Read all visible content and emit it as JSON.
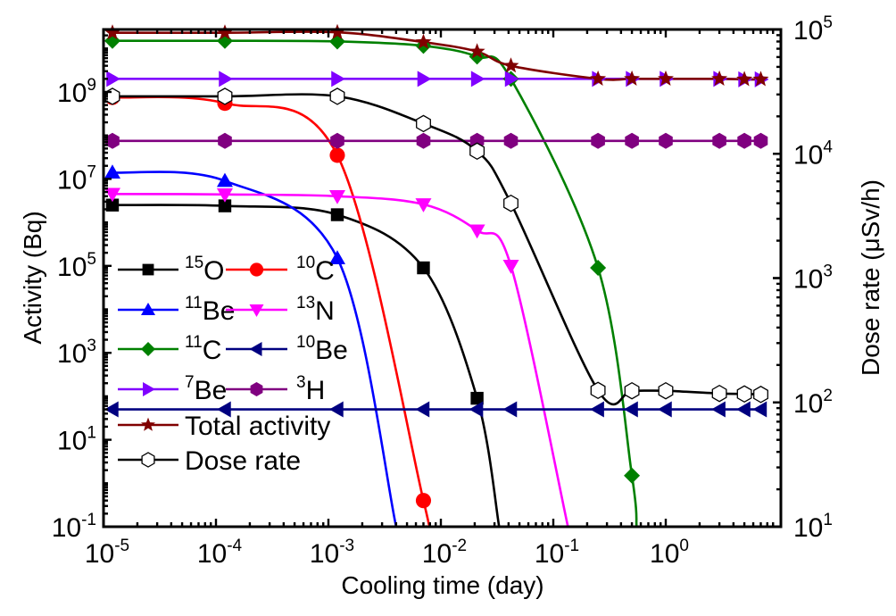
{
  "chart_data": {
    "type": "line",
    "title": "",
    "xlabel": "Cooling time (day)",
    "ylabel": "Activity (Bq)",
    "y2label": "Dose rate (μSv/h)",
    "xscale": "log",
    "yscale": "log",
    "y2scale": "log",
    "xlim": [
      1e-05,
      8
    ],
    "ylim": [
      0.1,
      28000000000.0
    ],
    "y2lim": [
      10,
      100000
    ],
    "xticks": [
      {
        "base": "10",
        "exp": "-5",
        "value": 1e-05
      },
      {
        "base": "10",
        "exp": "-4",
        "value": 0.0001
      },
      {
        "base": "10",
        "exp": "-3",
        "value": 0.001
      },
      {
        "base": "10",
        "exp": "-2",
        "value": 0.01
      },
      {
        "base": "10",
        "exp": "-1",
        "value": 0.1
      },
      {
        "base": "10",
        "exp": "0",
        "value": 1
      }
    ],
    "yticks": [
      {
        "base": "10",
        "exp": "-1",
        "value": 0.1
      },
      {
        "base": "10",
        "exp": "1",
        "value": 10
      },
      {
        "base": "10",
        "exp": "3",
        "value": 1000
      },
      {
        "base": "10",
        "exp": "5",
        "value": 100000
      },
      {
        "base": "10",
        "exp": "7",
        "value": 10000000
      },
      {
        "base": "10",
        "exp": "9",
        "value": 1000000000
      }
    ],
    "y2ticks": [
      {
        "base": "10",
        "exp": "1",
        "value": 10
      },
      {
        "base": "10",
        "exp": "2",
        "value": 100
      },
      {
        "base": "10",
        "exp": "3",
        "value": 1000
      },
      {
        "base": "10",
        "exp": "4",
        "value": 10000
      },
      {
        "base": "10",
        "exp": "5",
        "value": 100000
      }
    ],
    "grid": false,
    "legend_position": "center-left",
    "series": [
      {
        "name": "15O",
        "sup": "15",
        "label": "O",
        "color": "#000000",
        "marker": "square",
        "axis": "left",
        "x": [
          1.2e-05,
          0.00012,
          0.0012,
          0.007,
          0.021,
          0.033
        ],
        "y": [
          2500000.0,
          2400000.0,
          1500000.0,
          90000.0,
          90,
          0.1
        ]
      },
      {
        "name": "10C",
        "sup": "10",
        "label": "C",
        "color": "#ff0000",
        "marker": "circle",
        "axis": "left",
        "x": [
          1.2e-05,
          0.00012,
          0.0012,
          0.007,
          0.0074
        ],
        "y": [
          750000000.0,
          550000000.0,
          35000000.0,
          0.4,
          0.1
        ]
      },
      {
        "name": "11Be",
        "sup": "11",
        "label": "Be",
        "color": "#0000ff",
        "marker": "triangle-up",
        "axis": "left",
        "x": [
          1.2e-05,
          0.00012,
          0.0012,
          0.004
        ],
        "y": [
          14000000.0,
          9000000.0,
          150000.0,
          0.1
        ]
      },
      {
        "name": "13N",
        "sup": "13",
        "label": "N",
        "color": "#ff00ff",
        "marker": "triangle-down",
        "axis": "left",
        "x": [
          1.2e-05,
          0.00012,
          0.0012,
          0.007,
          0.021,
          0.042,
          0.135
        ],
        "y": [
          4500000.0,
          4400000.0,
          4000000.0,
          2600000.0,
          650000.0,
          100000.0,
          0.1
        ]
      },
      {
        "name": "11C",
        "sup": "11",
        "label": "C",
        "color": "#008000",
        "marker": "diamond",
        "axis": "left",
        "x": [
          1.2e-05,
          0.00012,
          0.0012,
          0.007,
          0.021,
          0.042,
          0.25,
          0.5,
          0.55
        ],
        "y": [
          15000000000.0,
          15000000000.0,
          14500000000.0,
          11500000000.0,
          6500000000.0,
          2000000000.0,
          90000.0,
          1.5,
          0.1
        ]
      },
      {
        "name": "10Be",
        "sup": "10",
        "label": "Be",
        "color": "#000080",
        "marker": "triangle-left",
        "axis": "left",
        "x": [
          1.2e-05,
          0.00012,
          0.0012,
          0.007,
          0.021,
          0.042,
          0.25,
          0.5,
          1,
          3,
          5,
          7
        ],
        "y": [
          50,
          50,
          50,
          50,
          50,
          50,
          50,
          50,
          50,
          50,
          50,
          50
        ]
      },
      {
        "name": "7Be",
        "sup": "7",
        "label": "Be",
        "color": "#8000ff",
        "marker": "triangle-right",
        "axis": "left",
        "x": [
          1.2e-05,
          0.00012,
          0.0012,
          0.007,
          0.021,
          0.042,
          0.25,
          0.5,
          1,
          3,
          5,
          7
        ],
        "y": [
          2000000000.0,
          2000000000.0,
          2000000000.0,
          2000000000.0,
          2000000000.0,
          2000000000.0,
          2000000000.0,
          2000000000.0,
          2000000000.0,
          2000000000.0,
          1950000000.0,
          1950000000.0
        ]
      },
      {
        "name": "3H",
        "sup": "3",
        "label": "H",
        "color": "#800080",
        "marker": "hexagon",
        "axis": "left",
        "x": [
          1.2e-05,
          0.00012,
          0.0012,
          0.007,
          0.021,
          0.042,
          0.25,
          0.5,
          1,
          3,
          5,
          7
        ],
        "y": [
          75000000.0,
          75000000.0,
          75000000.0,
          75000000.0,
          75000000.0,
          75000000.0,
          75000000.0,
          75000000.0,
          75000000.0,
          75000000.0,
          75000000.0,
          75000000.0
        ]
      },
      {
        "name": "Total activity",
        "sup": "",
        "label": "Total activity",
        "color": "#800000",
        "marker": "star",
        "axis": "left",
        "x": [
          1.2e-05,
          0.00012,
          0.0012,
          0.007,
          0.021,
          0.042,
          0.25,
          0.5,
          1,
          3,
          5,
          7
        ],
        "y": [
          23000000000.0,
          23000000000.0,
          23500000000.0,
          14000000000.0,
          8500000000.0,
          4000000000.0,
          2000000000.0,
          2000000000.0,
          2000000000.0,
          2000000000.0,
          1950000000.0,
          1950000000.0
        ]
      },
      {
        "name": "Dose rate",
        "sup": "",
        "label": "Dose rate",
        "color": "#000000",
        "marker": "hexagon-open",
        "axis": "right",
        "x": [
          1.2e-05,
          0.00012,
          0.0012,
          0.007,
          0.021,
          0.042,
          0.25,
          0.5,
          1,
          3,
          5,
          7
        ],
        "y": [
          29000,
          29000,
          29000,
          17500,
          10500,
          4000,
          125,
          124,
          124,
          118,
          117,
          116
        ]
      }
    ]
  }
}
